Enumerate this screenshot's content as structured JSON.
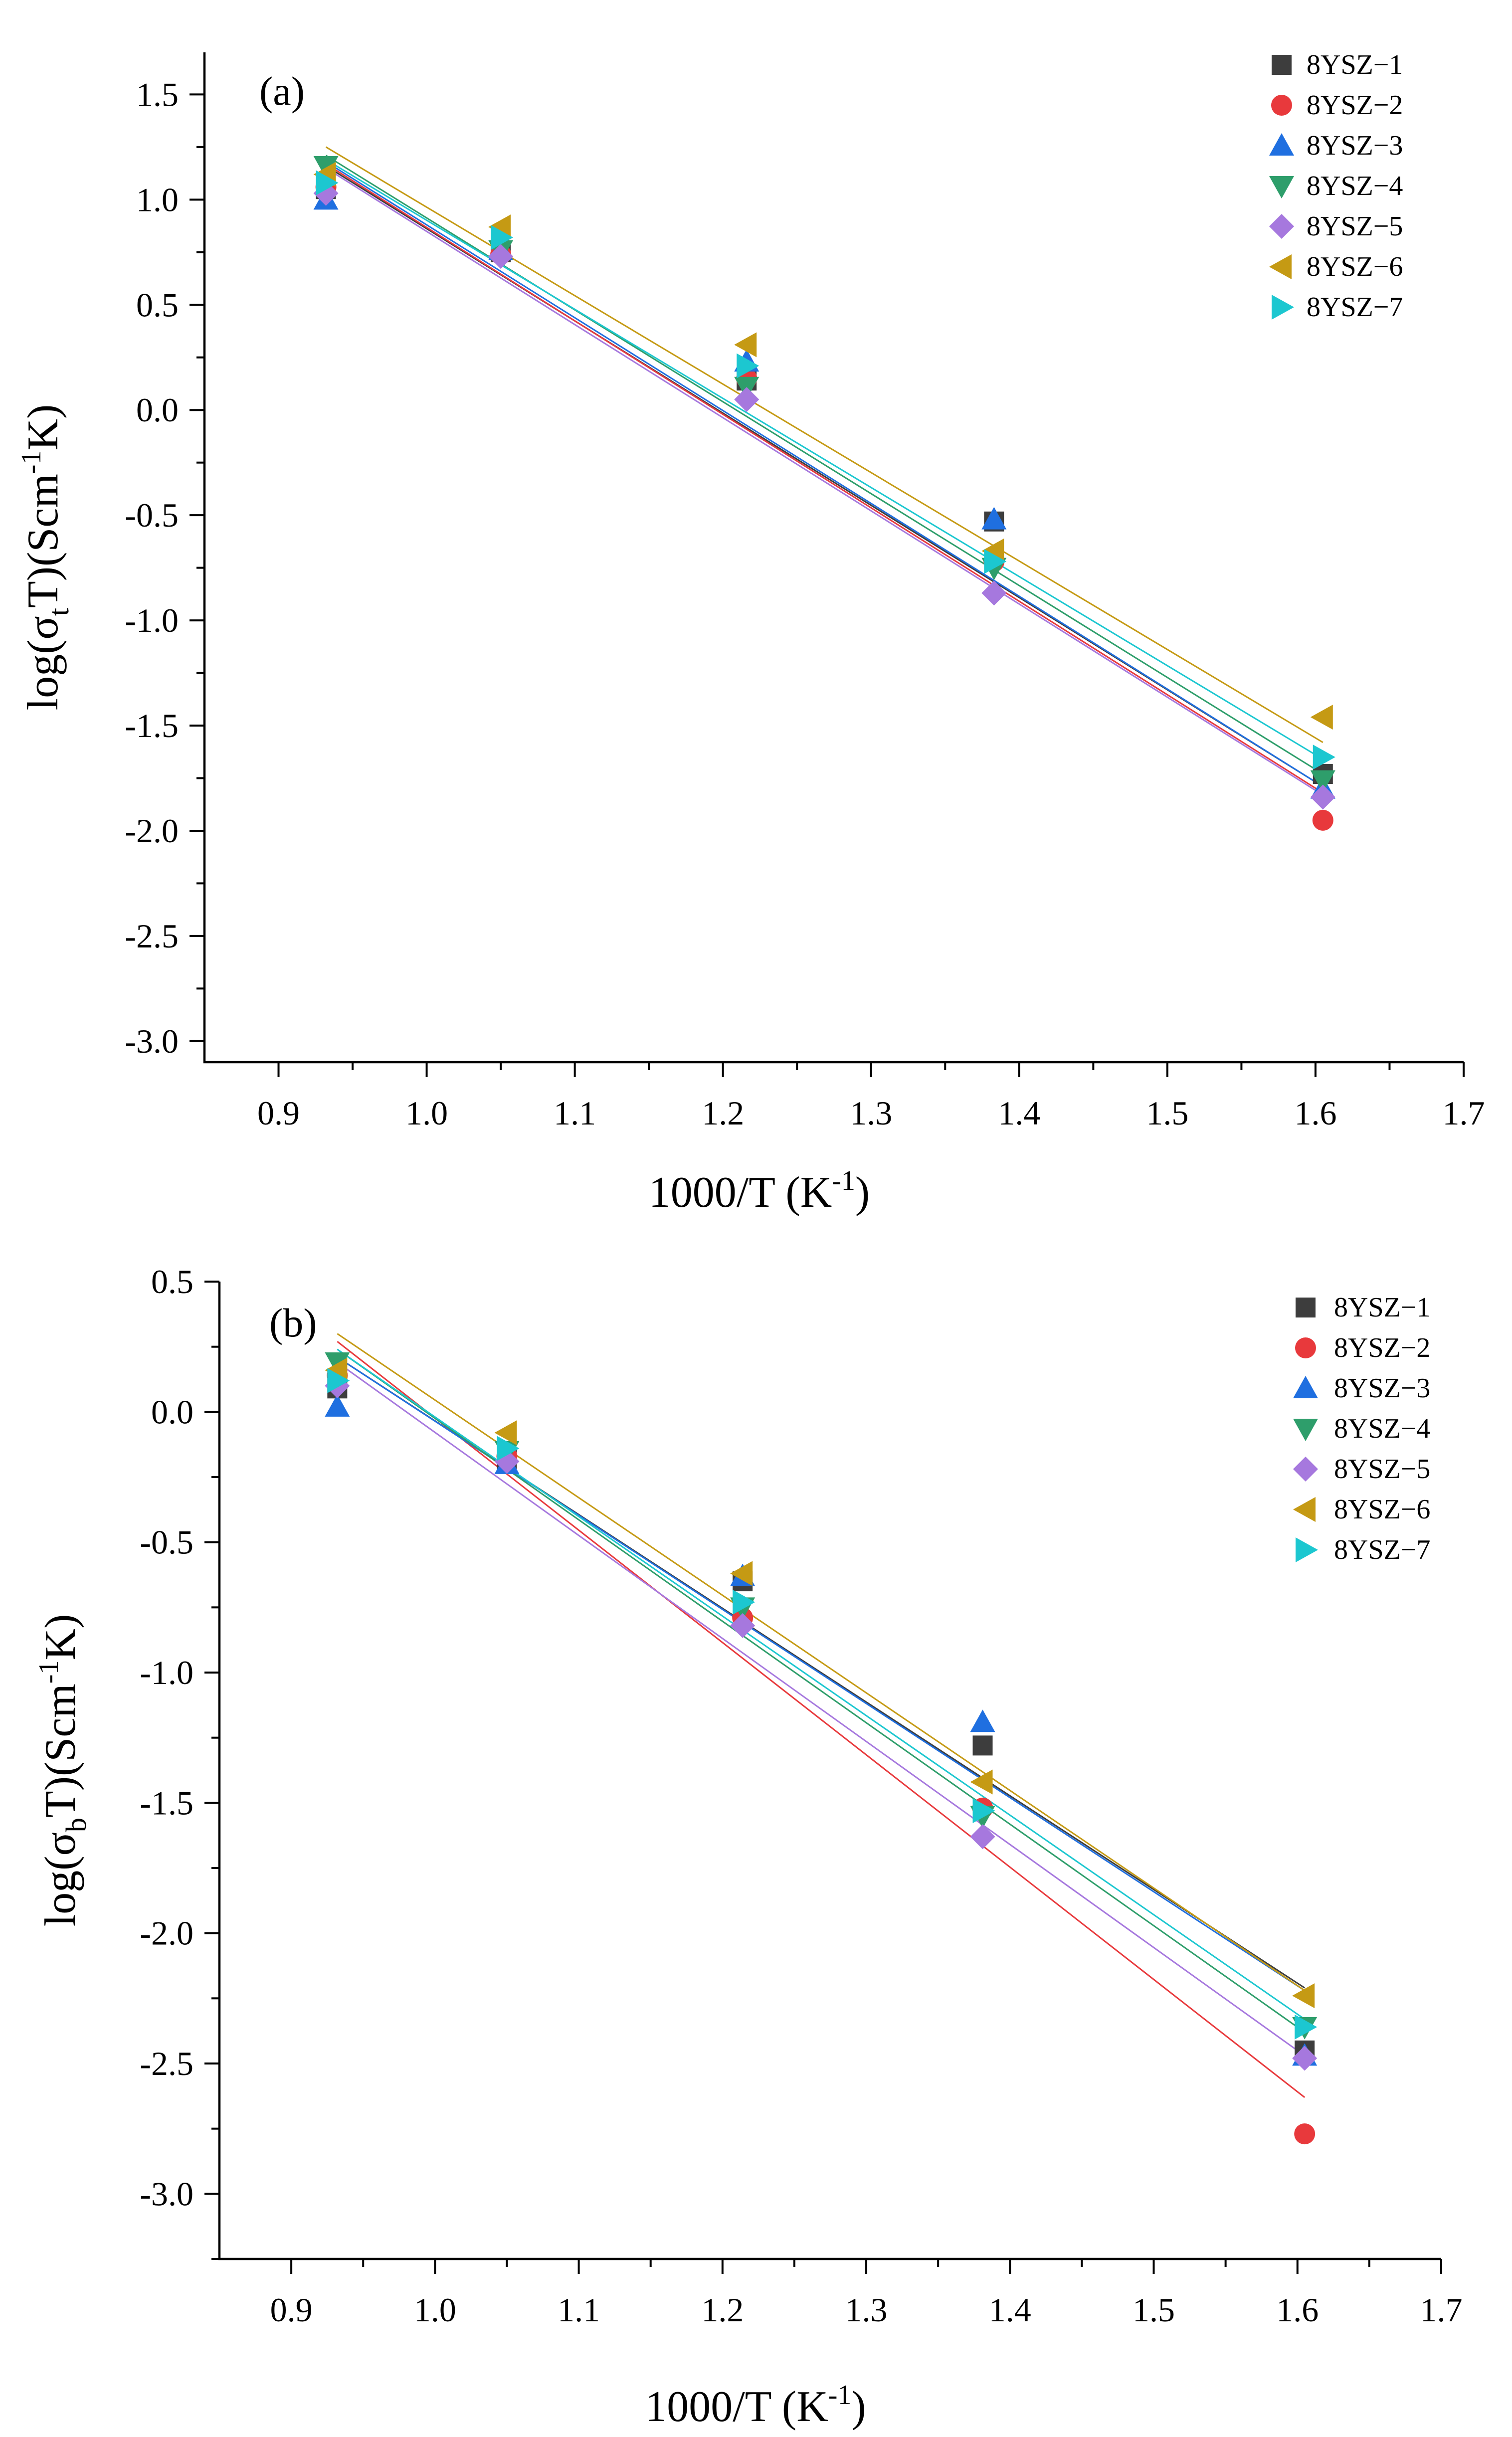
{
  "chart_data": [
    {
      "type": "scatter",
      "panel_label": "(a)",
      "xlabel": "1000/T (K⁻¹)",
      "xlabel_main": "1000/T (K",
      "xlabel_sup": "-1",
      "xlabel_end": ")",
      "ylabel_prefix": "log(σ",
      "ylabel_sub": "t",
      "ylabel_mid": "T)(Scm",
      "ylabel_sup": "-1",
      "ylabel_end": "K)",
      "xlim": [
        0.85,
        1.7
      ],
      "ylim": [
        -3.1,
        1.7
      ],
      "xticks": [
        0.9,
        1.0,
        1.1,
        1.2,
        1.3,
        1.4,
        1.5,
        1.6,
        1.7
      ],
      "xtick_labels": [
        "0.9",
        "1.0",
        "1.1",
        "1.2",
        "1.3",
        "1.4",
        "1.5",
        "1.6",
        "1.7"
      ],
      "yticks": [
        -3.0,
        -2.5,
        -2.0,
        -1.5,
        -1.0,
        -0.5,
        0.0,
        0.5,
        1.0,
        1.5
      ],
      "ytick_labels": [
        "-3.0",
        "-2.5",
        "-2.0",
        "-1.5",
        "-1.0",
        "-0.5",
        "0.0",
        "0.5",
        "1.0",
        "1.5"
      ],
      "legend_position": "top-right",
      "series": [
        {
          "name": "8YSZ−1",
          "marker": "square",
          "color": "#3d3d3d",
          "x": [
            0.932,
            1.05,
            1.216,
            1.383,
            1.605
          ],
          "y": [
            1.05,
            0.75,
            0.14,
            -0.53,
            -1.73
          ],
          "fit_x": [
            0.932,
            1.605
          ],
          "fit_y": [
            1.16,
            -1.79
          ]
        },
        {
          "name": "8YSZ−2",
          "marker": "circle",
          "color": "#e8393c",
          "x": [
            0.932,
            1.05,
            1.216,
            1.383,
            1.605
          ],
          "y": [
            1.06,
            0.74,
            0.15,
            -0.72,
            -1.95
          ],
          "fit_x": [
            0.932,
            1.605
          ],
          "fit_y": [
            1.17,
            -1.82
          ]
        },
        {
          "name": "8YSZ−3",
          "marker": "triangle-up",
          "color": "#1f6fe0",
          "x": [
            0.932,
            1.05,
            1.216,
            1.383,
            1.605
          ],
          "y": [
            1.0,
            0.76,
            0.23,
            -0.52,
            -1.8
          ],
          "fit_x": [
            0.932,
            1.605
          ],
          "fit_y": [
            1.18,
            -1.79
          ]
        },
        {
          "name": "8YSZ−4",
          "marker": "triangle-down",
          "color": "#2e9e6b",
          "x": [
            0.932,
            1.05,
            1.216,
            1.383,
            1.605
          ],
          "y": [
            1.16,
            0.76,
            0.11,
            -0.75,
            -1.76
          ],
          "fit_x": [
            0.932,
            1.605
          ],
          "fit_y": [
            1.21,
            -1.73
          ]
        },
        {
          "name": "8YSZ−5",
          "marker": "diamond",
          "color": "#a678de",
          "x": [
            0.932,
            1.05,
            1.216,
            1.383,
            1.605
          ],
          "y": [
            1.03,
            0.73,
            0.05,
            -0.87,
            -1.84
          ],
          "fit_x": [
            0.932,
            1.605
          ],
          "fit_y": [
            1.15,
            -1.83
          ]
        },
        {
          "name": "8YSZ−6",
          "marker": "triangle-left",
          "color": "#c59a14",
          "x": [
            0.932,
            1.05,
            1.216,
            1.383,
            1.605
          ],
          "y": [
            1.12,
            0.87,
            0.31,
            -0.67,
            -1.46
          ],
          "fit_x": [
            0.932,
            1.605
          ],
          "fit_y": [
            1.25,
            -1.58
          ]
        },
        {
          "name": "8YSZ−7",
          "marker": "triangle-right",
          "color": "#1cc7d0",
          "x": [
            0.932,
            1.05,
            1.216,
            1.383,
            1.605
          ],
          "y": [
            1.08,
            0.82,
            0.21,
            -0.72,
            -1.65
          ],
          "fit_x": [
            0.932,
            1.605
          ],
          "fit_y": [
            1.19,
            -1.66
          ]
        }
      ]
    },
    {
      "type": "scatter",
      "panel_label": "(b)",
      "xlabel": "1000/T (K⁻¹)",
      "xlabel_main": "1000/T (K",
      "xlabel_sup": "-1",
      "xlabel_end": ")",
      "ylabel_prefix": "log(σ",
      "ylabel_sub": "b",
      "ylabel_mid": "T)(Scm",
      "ylabel_sup": "-1",
      "ylabel_end": "K)",
      "xlim": [
        0.85,
        1.7
      ],
      "ylim": [
        -3.25,
        0.5
      ],
      "xticks": [
        0.9,
        1.0,
        1.1,
        1.2,
        1.3,
        1.4,
        1.5,
        1.6,
        1.7
      ],
      "xtick_labels": [
        "0.9",
        "1.0",
        "1.1",
        "1.2",
        "1.3",
        "1.4",
        "1.5",
        "1.6",
        "1.7"
      ],
      "yticks": [
        -3.0,
        -2.5,
        -2.0,
        -1.5,
        -1.0,
        -0.5,
        0.0,
        0.5
      ],
      "ytick_labels": [
        "-3.0",
        "-2.5",
        "-2.0",
        "-1.5",
        "-1.0",
        "-0.5",
        "0.0",
        "0.5"
      ],
      "legend_position": "top-right",
      "series": [
        {
          "name": "8YSZ−1",
          "marker": "square",
          "color": "#3d3d3d",
          "x": [
            0.932,
            1.05,
            1.214,
            1.381,
            1.605
          ],
          "y": [
            0.09,
            -0.18,
            -0.65,
            -1.28,
            -2.45
          ],
          "fit_x": [
            0.932,
            1.605
          ],
          "fit_y": [
            0.21,
            -2.21
          ]
        },
        {
          "name": "8YSZ−2",
          "marker": "circle",
          "color": "#e8393c",
          "x": [
            0.932,
            1.05,
            1.214,
            1.381,
            1.605
          ],
          "y": [
            0.14,
            -0.17,
            -0.79,
            -1.52,
            -2.77
          ],
          "fit_x": [
            0.932,
            1.605
          ],
          "fit_y": [
            0.27,
            -2.63
          ]
        },
        {
          "name": "8YSZ−3",
          "marker": "triangle-up",
          "color": "#1f6fe0",
          "x": [
            0.932,
            1.05,
            1.214,
            1.381,
            1.605
          ],
          "y": [
            0.02,
            -0.2,
            -0.63,
            -1.19,
            -2.47
          ],
          "fit_x": [
            0.932,
            1.605
          ],
          "fit_y": [
            0.21,
            -2.22
          ]
        },
        {
          "name": "8YSZ−4",
          "marker": "triangle-down",
          "color": "#2e9e6b",
          "x": [
            0.932,
            1.05,
            1.214,
            1.381,
            1.605
          ],
          "y": [
            0.19,
            -0.15,
            -0.75,
            -1.55,
            -2.36
          ],
          "fit_x": [
            0.932,
            1.605
          ],
          "fit_y": [
            0.24,
            -2.38
          ]
        },
        {
          "name": "8YSZ−5",
          "marker": "diamond",
          "color": "#a678de",
          "x": [
            0.932,
            1.05,
            1.214,
            1.381,
            1.605
          ],
          "y": [
            0.1,
            -0.19,
            -0.82,
            -1.63,
            -2.48
          ],
          "fit_x": [
            0.932,
            1.605
          ],
          "fit_y": [
            0.19,
            -2.47
          ]
        },
        {
          "name": "8YSZ−6",
          "marker": "triangle-left",
          "color": "#c59a14",
          "x": [
            0.932,
            1.05,
            1.214,
            1.381,
            1.605
          ],
          "y": [
            0.16,
            -0.08,
            -0.62,
            -1.42,
            -2.24
          ],
          "fit_x": [
            0.932,
            1.605
          ],
          "fit_y": [
            0.3,
            -2.22
          ]
        },
        {
          "name": "8YSZ−7",
          "marker": "triangle-right",
          "color": "#1cc7d0",
          "x": [
            0.932,
            1.05,
            1.214,
            1.381,
            1.605
          ],
          "y": [
            0.12,
            -0.14,
            -0.73,
            -1.53,
            -2.36
          ],
          "fit_x": [
            0.932,
            1.605
          ],
          "fit_y": [
            0.24,
            -2.33
          ]
        }
      ]
    }
  ]
}
